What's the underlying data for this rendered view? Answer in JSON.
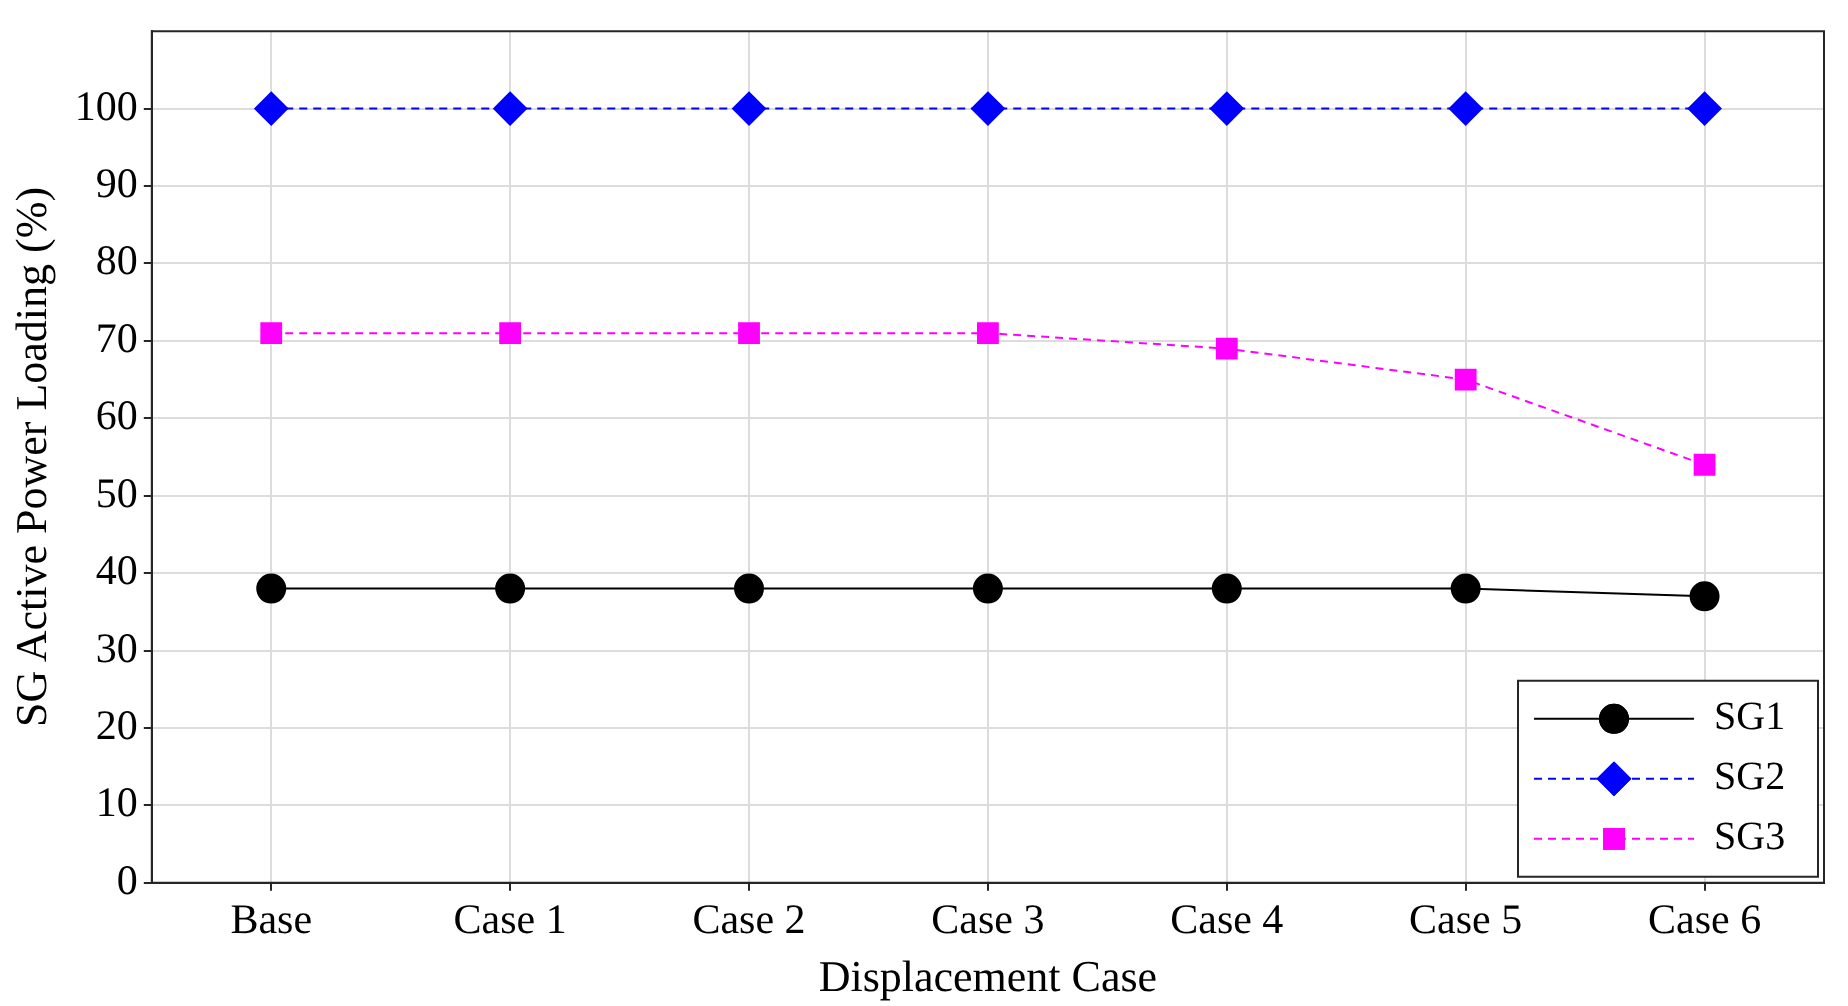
{
  "chart_data": {
    "type": "line",
    "xlabel": "Displacement Case",
    "ylabel": "SG Active Power Loading (%)",
    "categories": [
      "Base",
      "Case 1",
      "Case 2",
      "Case 3",
      "Case 4",
      "Case 5",
      "Case 6"
    ],
    "series": [
      {
        "name": "SG1",
        "color": "#000000",
        "marker": "circle",
        "line_style": "solid",
        "values": [
          38,
          38,
          38,
          38,
          38,
          38,
          37
        ]
      },
      {
        "name": "SG2",
        "color": "#0000ff",
        "marker": "diamond",
        "line_style": "dashed",
        "values": [
          100,
          100,
          100,
          100,
          100,
          100,
          100
        ]
      },
      {
        "name": "SG3",
        "color": "#ff00ff",
        "marker": "square",
        "line_style": "dashed",
        "values": [
          71,
          71,
          71,
          71,
          69,
          65,
          54
        ]
      }
    ],
    "ylim": [
      0,
      110
    ],
    "yticks": [
      0,
      10,
      20,
      30,
      40,
      50,
      60,
      70,
      80,
      90,
      100
    ],
    "grid": true,
    "legend": "bottom right"
  }
}
